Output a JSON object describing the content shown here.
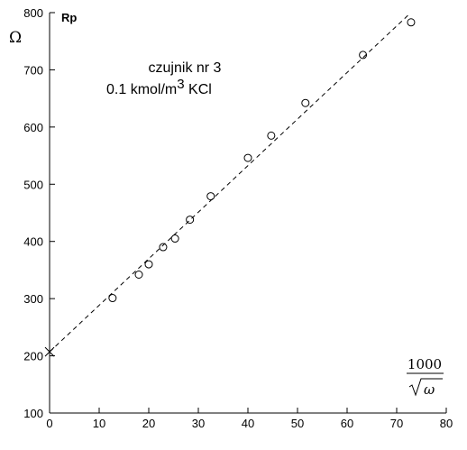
{
  "chart_data": {
    "type": "scatter",
    "title": "",
    "ylabel": "Rp",
    "yunit": "Ω",
    "xlabel": {
      "numerator": "1000",
      "radicand": "ω"
    },
    "annotation": {
      "line1": "czujnik nr 3",
      "line2_prefix": "0.1 kmol/m",
      "line2_sup": "3",
      "line2_suffix": " KCl"
    },
    "xlim": [
      0,
      80
    ],
    "ylim": [
      100,
      800
    ],
    "xticks": [
      0,
      10,
      20,
      30,
      40,
      50,
      60,
      70,
      80
    ],
    "yticks": [
      100,
      200,
      300,
      400,
      500,
      600,
      700,
      800
    ],
    "grid": false,
    "series": [
      {
        "marker": "circle",
        "x": [
          12.7,
          18.0,
          20.0,
          22.9,
          25.3,
          28.3,
          32.5,
          40.0,
          44.7,
          51.6,
          63.2,
          72.9
        ],
        "y": [
          301,
          342,
          360,
          390,
          405,
          438,
          479,
          546,
          585,
          642,
          726,
          783
        ]
      }
    ],
    "fit_line": {
      "style": "dashed",
      "x": [
        0,
        72.5
      ],
      "y": [
        207,
        797
      ]
    },
    "intercept_marker": {
      "marker": "x",
      "x": 0,
      "y": 207
    }
  }
}
